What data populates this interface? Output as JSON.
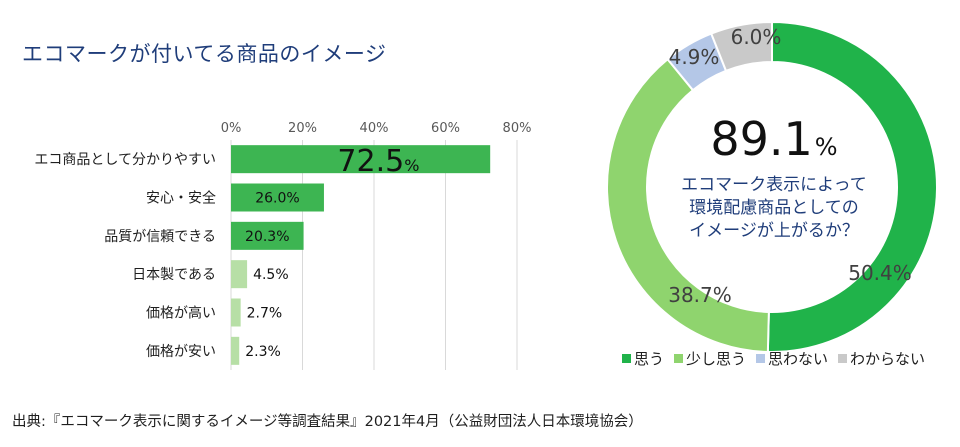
{
  "title": "エコマークが付いてる商品のイメージ",
  "source": "出典:『エコマーク表示に関するイメージ等調査結果』2021年4月（公益財団法人日本環境協会）",
  "chart_data": [
    {
      "type": "bar",
      "orientation": "horizontal",
      "categories": [
        "エコ商品として分かりやすい",
        "安心・安全",
        "品質が信頼できる",
        "日本製である",
        "価格が高い",
        "価格が安い"
      ],
      "values": [
        72.5,
        26.0,
        20.3,
        4.5,
        2.7,
        2.3
      ],
      "value_labels": [
        "72.5",
        "26.0%",
        "20.3%",
        "4.5%",
        "2.7%",
        "2.3%"
      ],
      "unit": "%",
      "xlim": [
        0,
        80
      ],
      "ticks": [
        "0%",
        "20%",
        "40%",
        "60%",
        "80%"
      ],
      "bar_colors": [
        "#3db552",
        "#3db552",
        "#3db552",
        "#b7dfa6",
        "#b7dfa6",
        "#b7dfa6"
      ],
      "grid": true
    },
    {
      "type": "pie",
      "donut": true,
      "categories": [
        "思う",
        "少し思う",
        "思わない",
        "わからない"
      ],
      "values": [
        50.4,
        38.7,
        4.9,
        6.0
      ],
      "value_labels": [
        "50.4%",
        "38.7%",
        "4.9%",
        "6.0%"
      ],
      "colors": [
        "#20b34a",
        "#8fd46e",
        "#b4c7e7",
        "#c9c9c9"
      ],
      "center_value": "89.1",
      "center_unit": "%",
      "center_text": [
        "エコマーク表示によって",
        "環境配慮商品としての",
        "イメージが上がるか？"
      ],
      "legend_position": "bottom"
    }
  ]
}
